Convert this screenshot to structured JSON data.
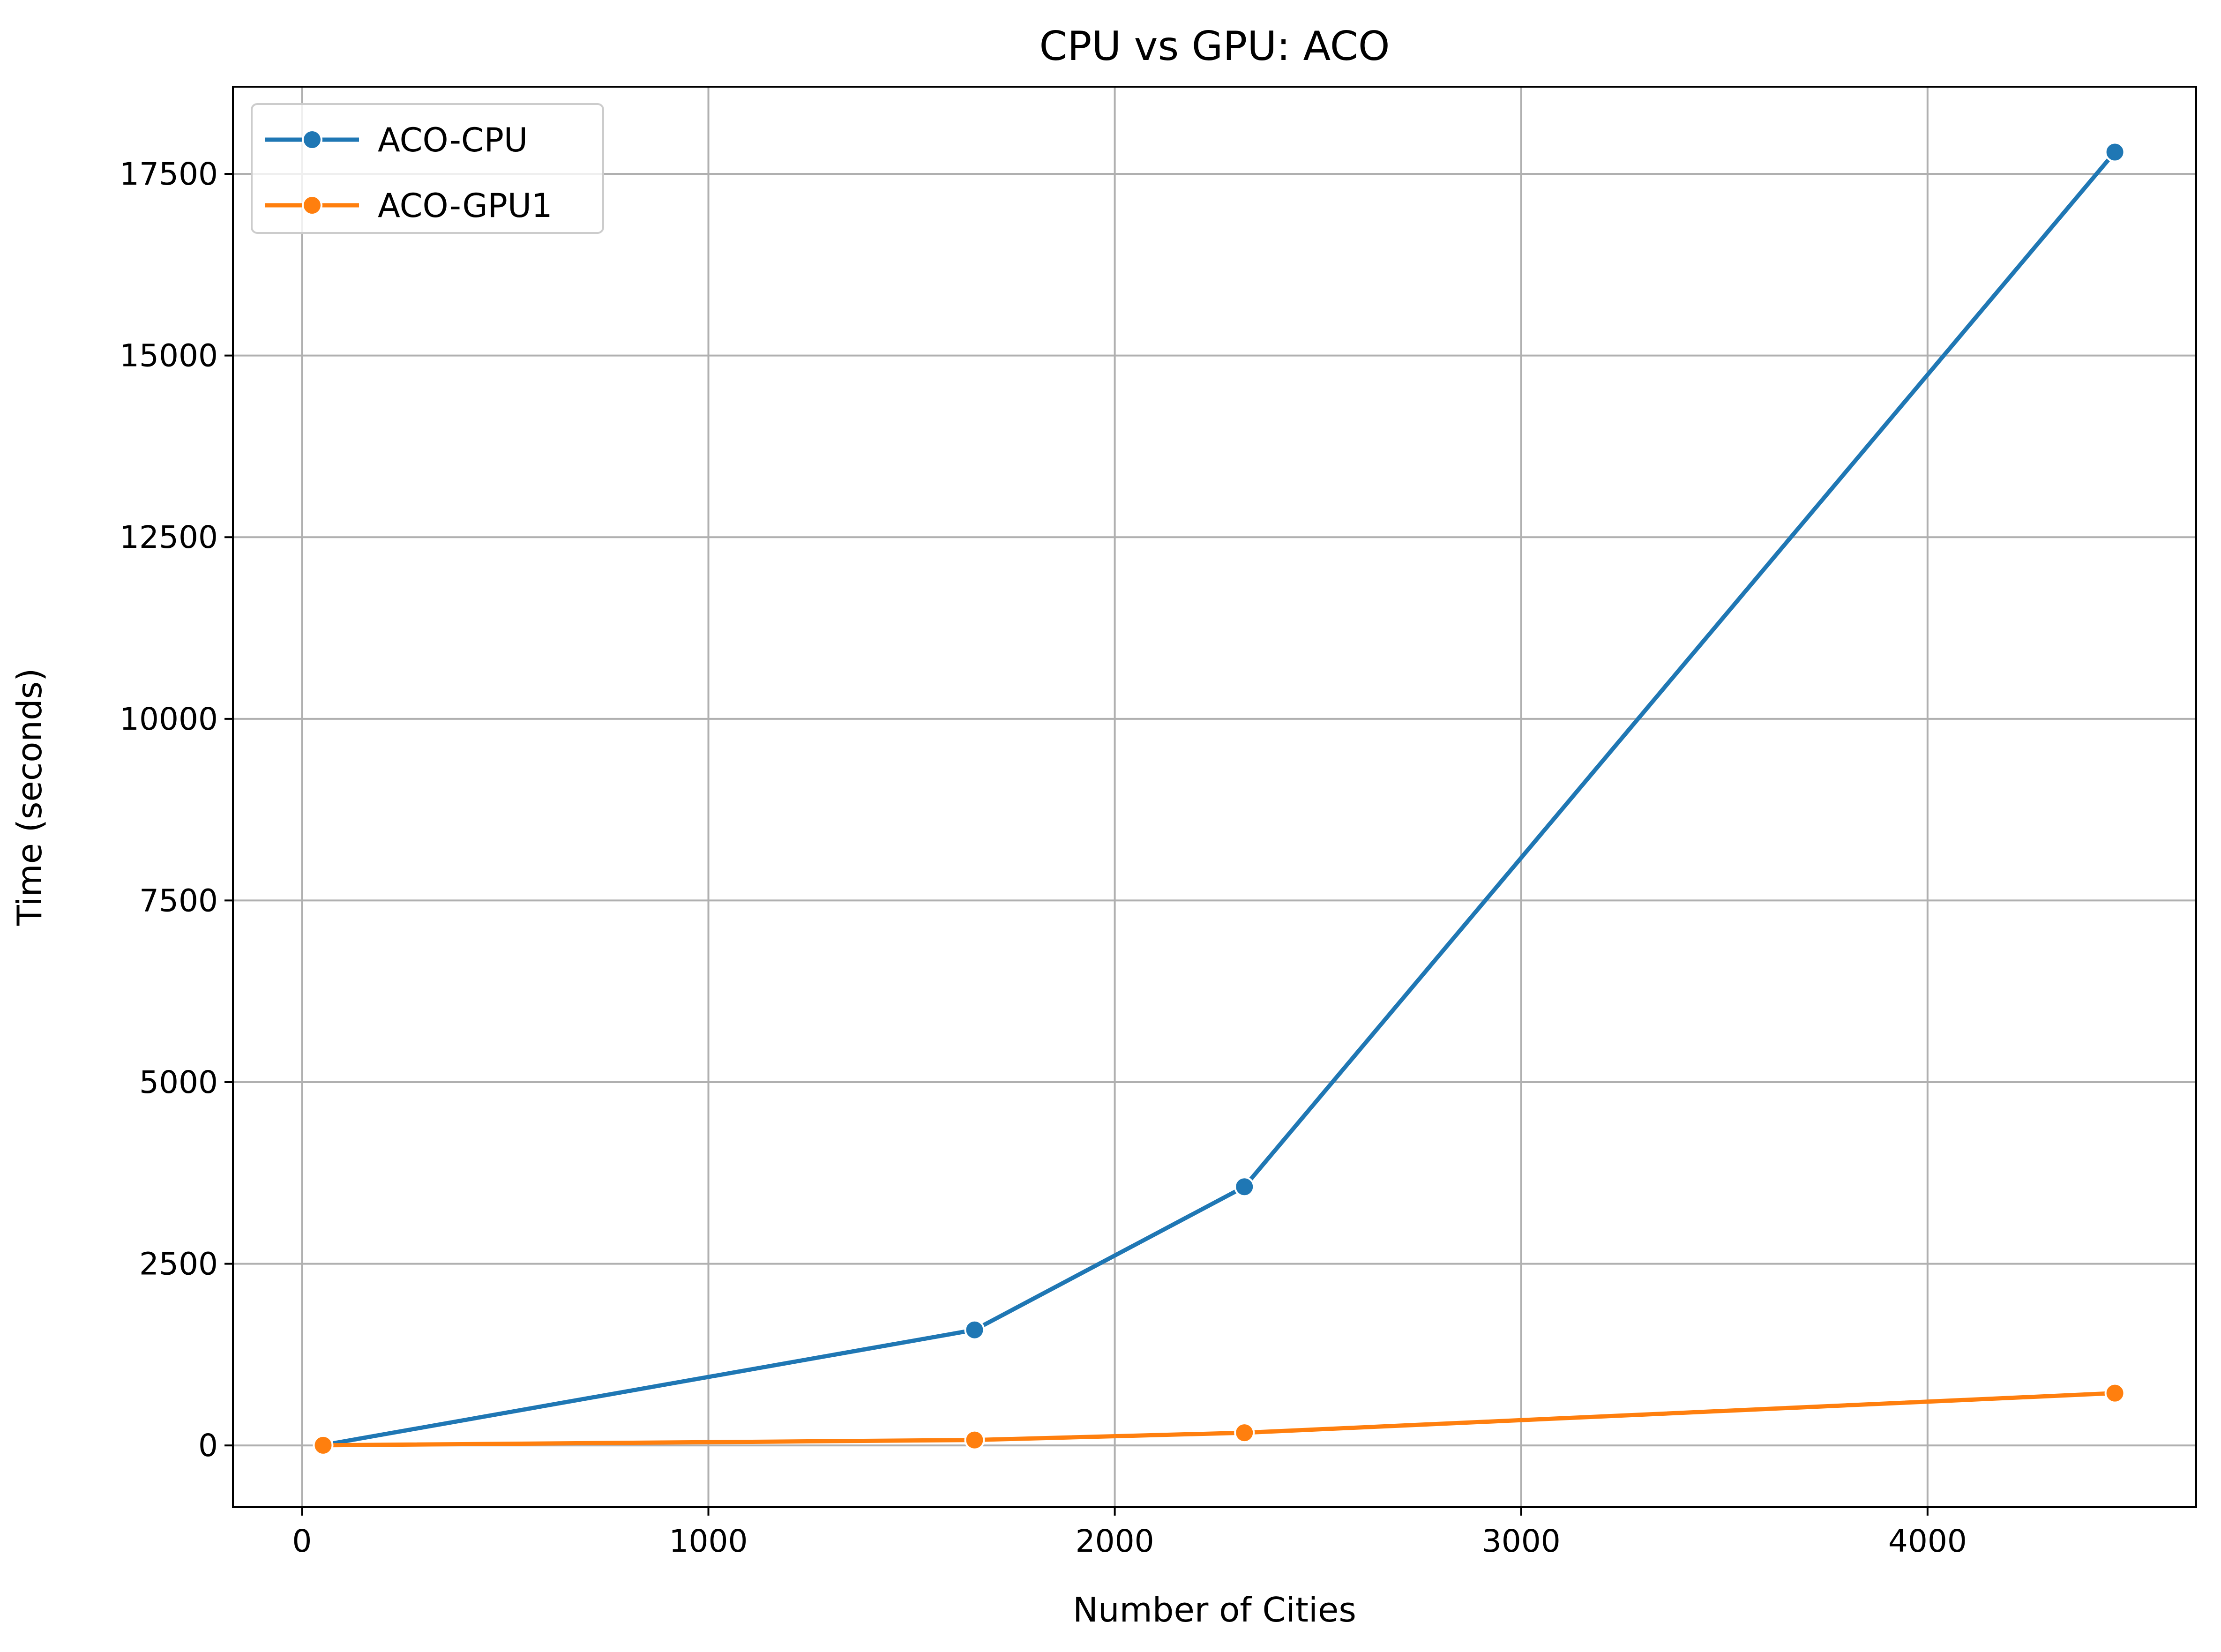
{
  "chart_data": {
    "type": "line",
    "title": "CPU vs GPU: ACO",
    "xlabel": "Number of Cities",
    "ylabel": "Time (seconds)",
    "xlim": [
      -170,
      4661
    ],
    "ylim": [
      -850,
      18700
    ],
    "xticks": [
      0,
      1000,
      2000,
      3000,
      4000
    ],
    "yticks": [
      0,
      2500,
      5000,
      7500,
      10000,
      12500,
      15000,
      17500
    ],
    "grid": true,
    "legend_position": "top-left",
    "series": [
      {
        "name": "ACO-CPU",
        "color": "#1f77b4",
        "marker": "circle",
        "x": [
          52,
          1655,
          2319,
          4461
        ],
        "y": [
          5,
          1590,
          3560,
          17800
        ]
      },
      {
        "name": "ACO-GPU1",
        "color": "#ff7f0e",
        "marker": "circle",
        "x": [
          52,
          1655,
          2319,
          4461
        ],
        "y": [
          2,
          75,
          175,
          720
        ]
      }
    ]
  }
}
